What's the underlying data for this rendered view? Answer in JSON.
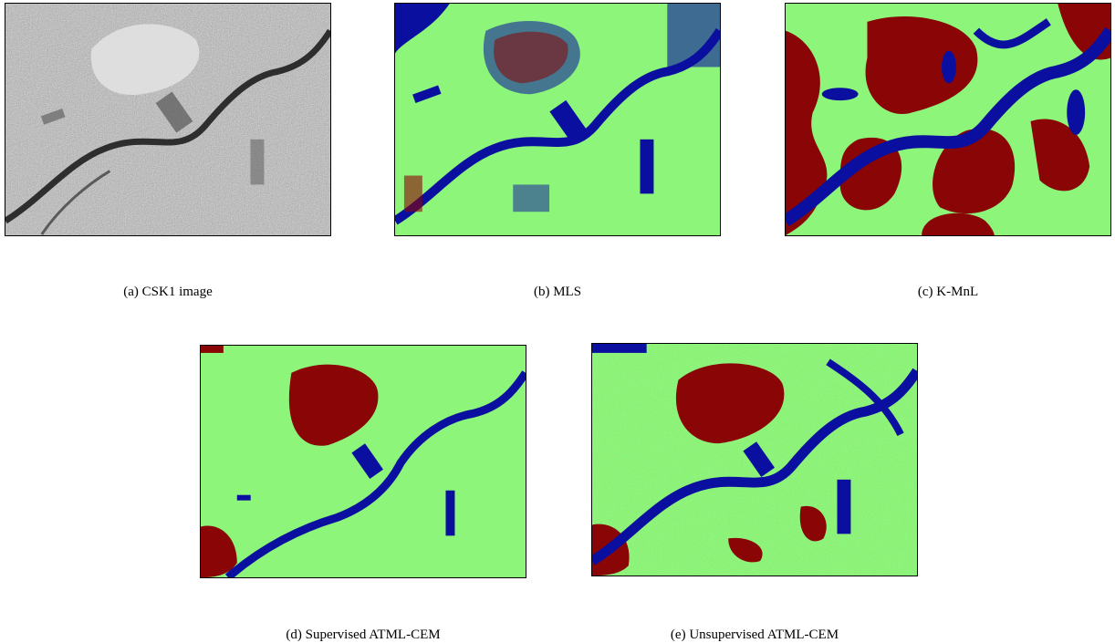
{
  "figure": {
    "panels": [
      {
        "label": "(a)",
        "caption": "(a)  CSK1 image"
      },
      {
        "label": "(b)",
        "caption": "(b)  MLS"
      },
      {
        "label": "(c)",
        "caption": "(c)  K-MnL"
      },
      {
        "label": "(d)",
        "caption": "(d)  Supervised ATML-CEM"
      },
      {
        "label": "(e)",
        "caption": "(e)  Unsupervised ATML-CEM"
      }
    ],
    "class_colors": {
      "vegetation": "#8cf57a",
      "water": "#0a0fa0",
      "urban": "#8a0505"
    }
  }
}
